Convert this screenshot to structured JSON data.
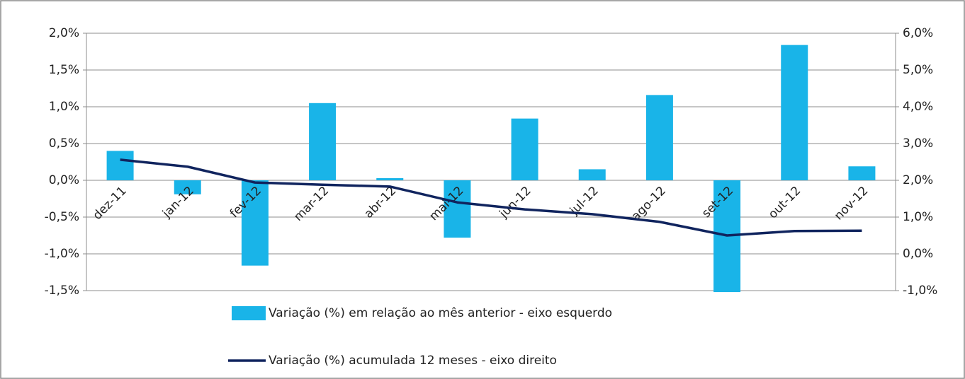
{
  "chart_data": {
    "type": "bar_line",
    "categories": [
      "dez-11",
      "jan-12",
      "fev-12",
      "mar-12",
      "abr-12",
      "mai-12",
      "jun-12",
      "jul-12",
      "ago-12",
      "set-12",
      "out-12",
      "nov-12"
    ],
    "series": [
      {
        "name": "Variação (%) em relação ao mês anterior - eixo esquerdo",
        "color": "#19b4e8",
        "type": "bar",
        "values": [
          0.4,
          -0.19,
          -1.16,
          1.05,
          0.03,
          -0.78,
          0.84,
          0.15,
          1.16,
          -1.52,
          1.84,
          0.19
        ]
      },
      {
        "name": "Variação (%) acumulada 12 meses - eixo direito",
        "color": "#10245e",
        "type": "line",
        "axis": "y2",
        "values": [
          2.56,
          2.37,
          1.94,
          1.88,
          1.83,
          1.4,
          1.21,
          1.08,
          0.87,
          0.5,
          0.62,
          0.63
        ]
      }
    ],
    "ylim": [
      -1.5,
      2.0
    ],
    "yticks": [
      {
        "value": -1.5,
        "label": "-1,5%"
      },
      {
        "value": -1.0,
        "label": "-1,0%"
      },
      {
        "value": -0.5,
        "label": "-0,5%"
      },
      {
        "value": 0,
        "label": "0,0%"
      },
      {
        "value": 0.5,
        "label": "0,5%"
      },
      {
        "value": 1.0,
        "label": "1,0%"
      },
      {
        "value": 1.5,
        "label": "1,5%"
      },
      {
        "value": 2.0,
        "label": "2,0%"
      }
    ],
    "y2lim": [
      -1.0,
      6.0
    ],
    "y2ticks": [
      {
        "value": -1.0,
        "label": "-1,0%"
      },
      {
        "value": 0,
        "label": "0,0%"
      },
      {
        "value": 1.0,
        "label": "1,0%"
      },
      {
        "value": 2.0,
        "label": "2,0%"
      },
      {
        "value": 3.0,
        "label": "3,0%"
      },
      {
        "value": 4.0,
        "label": "4,0%"
      },
      {
        "value": 5.0,
        "label": "5,0%"
      },
      {
        "value": 6.0,
        "label": "6,0%"
      }
    ],
    "grid": true,
    "legend": "bottom"
  }
}
